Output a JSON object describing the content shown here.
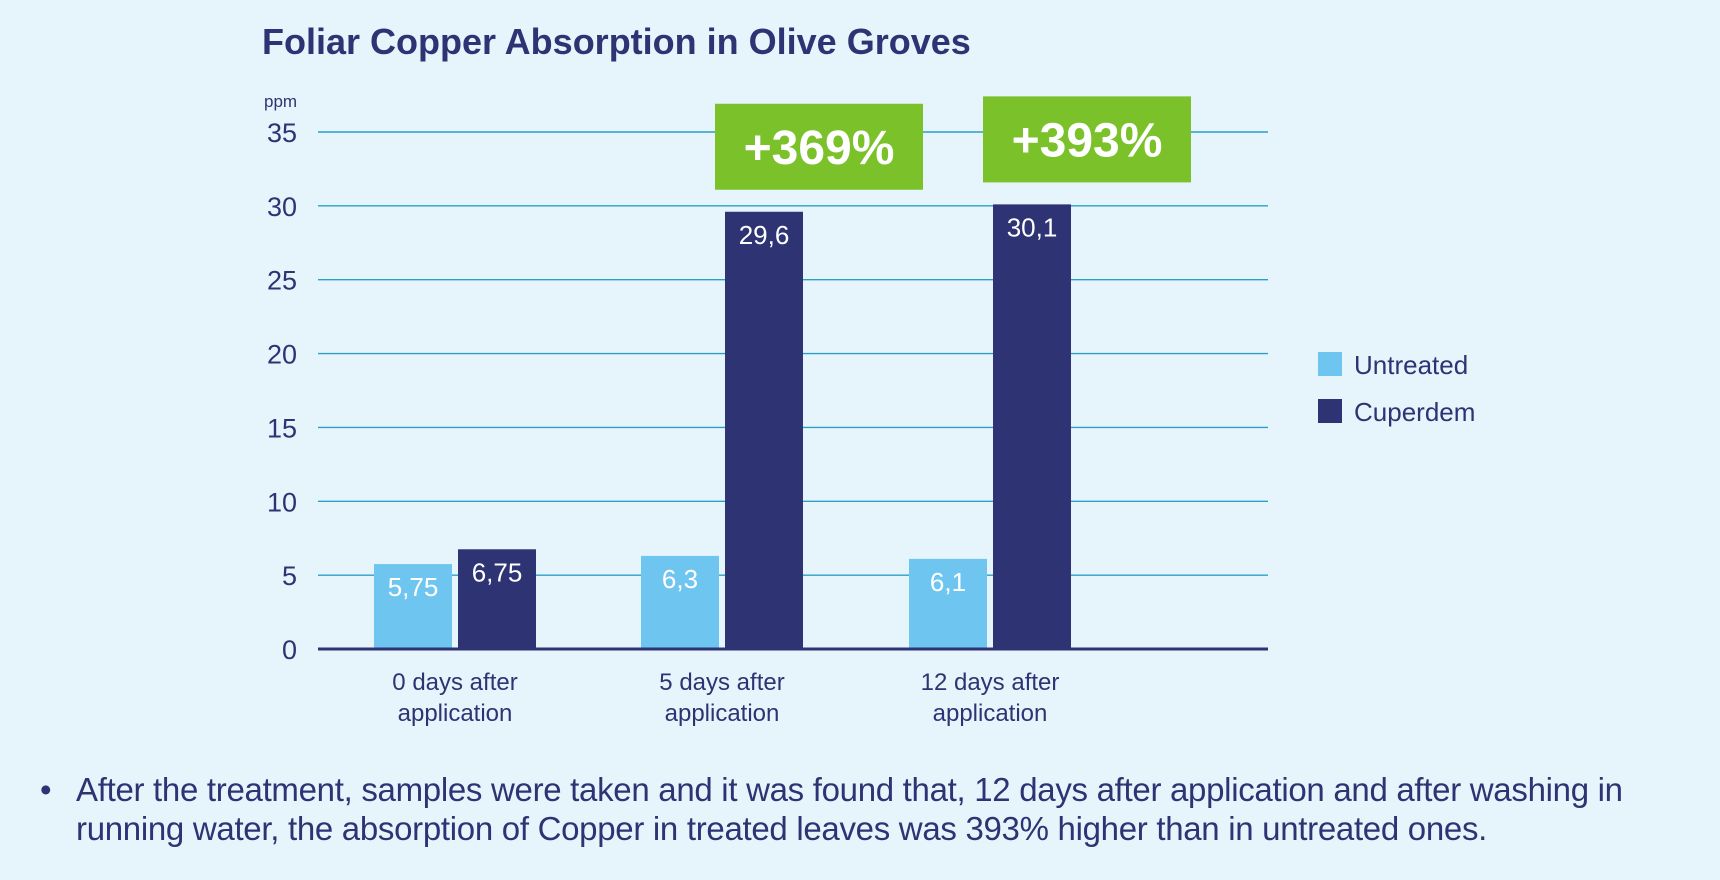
{
  "chart_data": {
    "type": "bar",
    "title": "Foliar Copper Absorption in Olive Groves",
    "ylabel": "ppm",
    "xlabel": "",
    "ylim": [
      0,
      35
    ],
    "yticks": [
      0,
      5,
      10,
      15,
      20,
      25,
      30,
      35
    ],
    "grid": true,
    "legend_position": "right",
    "categories": [
      [
        "0 days after",
        "application"
      ],
      [
        "5 days after",
        "application"
      ],
      [
        "12 days after",
        "application"
      ]
    ],
    "series": [
      {
        "name": "Untreated",
        "color": "#6ec6f0",
        "values": [
          5.75,
          6.3,
          6.1
        ],
        "labels": [
          "5,75",
          "6,3",
          "6,1"
        ]
      },
      {
        "name": "Cuperdem",
        "color": "#2e3374",
        "values": [
          6.75,
          29.6,
          30.1
        ],
        "labels": [
          "6,75",
          "29,6",
          "30,1"
        ]
      }
    ],
    "annotations": [
      {
        "text": "+369%",
        "category_index": 1,
        "color": "#7ac12a"
      },
      {
        "text": "+393%",
        "category_index": 2,
        "color": "#7ac12a"
      }
    ],
    "colors": {
      "background": "#e6f4fb",
      "text": "#2e3374",
      "grid": "#2a9fc8",
      "axis": "#2e3374",
      "bar_label": "#ffffff",
      "badge_text": "#ffffff"
    }
  },
  "footnote": {
    "bullet": "•",
    "text": "After the treatment, samples were taken and it was found that, 12 days after application and after washing in running water, the absorption of Copper in treated leaves was 393% higher than in untreated ones."
  }
}
